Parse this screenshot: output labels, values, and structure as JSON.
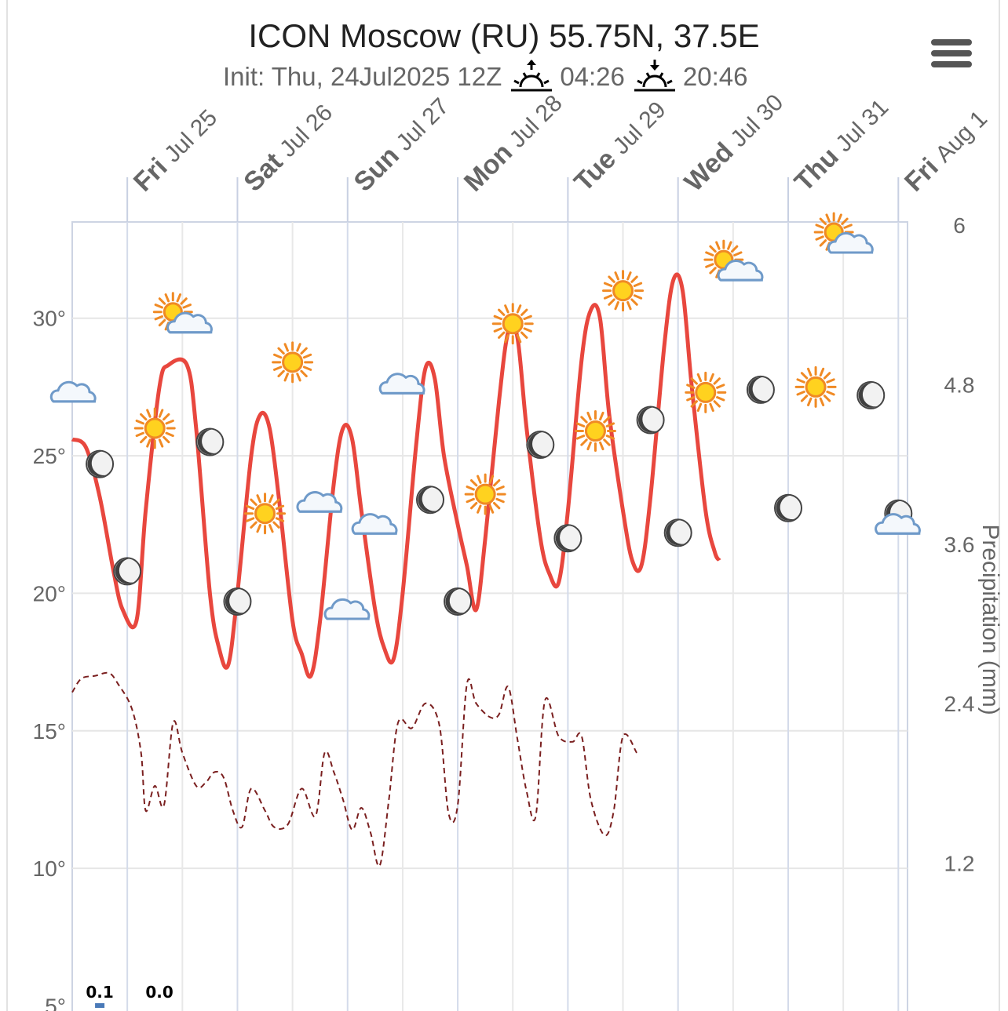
{
  "header": {
    "title": "ICON Moscow (RU) 55.75N, 37.5E",
    "init": "Init: Thu, 24Jul2025 12Z",
    "sunrise": "04:26",
    "sunset": "20:46",
    "menu_icon": "hamburger-menu-icon"
  },
  "chart_data": {
    "type": "line",
    "x_unit": "hours since Thu 24Jul2025 12Z",
    "x_range": [
      0,
      182
    ],
    "days": [
      {
        "dow": "Fri",
        "date": "Jul 25",
        "hour": 12
      },
      {
        "dow": "Sat",
        "date": "Jul 26",
        "hour": 36
      },
      {
        "dow": "Sun",
        "date": "Jul 27",
        "hour": 60
      },
      {
        "dow": "Mon",
        "date": "Jul 28",
        "hour": 84
      },
      {
        "dow": "Tue",
        "date": "Jul 29",
        "hour": 108
      },
      {
        "dow": "Wed",
        "date": "Jul 30",
        "hour": 132
      },
      {
        "dow": "Thu",
        "date": "Jul 31",
        "hour": 156
      },
      {
        "dow": "Fri",
        "date": "Aug 1",
        "hour": 180
      }
    ],
    "y_left": {
      "ticks": [
        "10°",
        "15°",
        "20°",
        "25°",
        "30°"
      ],
      "tick_values": [
        10,
        15,
        20,
        25,
        30
      ],
      "range": [
        4.5,
        33.5
      ],
      "partial_bottom_tick": "5°"
    },
    "y_right": {
      "title": "Precipitation (mm)",
      "ticks": [
        "1.2",
        "2.4",
        "3.6",
        "4.8",
        "6"
      ],
      "tick_values": [
        1.2,
        2.4,
        3.6,
        4.8,
        6
      ],
      "range": [
        0,
        6
      ]
    },
    "series": [
      {
        "kind": "temperature",
        "color": "#e8473e",
        "style": "solid",
        "points": [
          [
            0,
            25.6
          ],
          [
            3,
            25.3
          ],
          [
            6,
            23.5
          ],
          [
            9,
            20.8
          ],
          [
            11,
            19.4
          ],
          [
            14,
            19.0
          ],
          [
            16,
            23
          ],
          [
            19,
            27.5
          ],
          [
            21,
            28.3
          ],
          [
            25,
            28.3
          ],
          [
            27,
            26
          ],
          [
            30,
            20
          ],
          [
            32,
            18
          ],
          [
            34,
            17.4
          ],
          [
            36,
            20
          ],
          [
            39,
            25
          ],
          [
            41,
            26.5
          ],
          [
            43,
            26
          ],
          [
            45,
            23.5
          ],
          [
            48,
            19
          ],
          [
            50,
            17.8
          ],
          [
            52,
            17.0
          ],
          [
            54,
            19
          ],
          [
            57,
            24
          ],
          [
            59,
            26
          ],
          [
            61,
            25.6
          ],
          [
            63,
            23
          ],
          [
            66,
            19.4
          ],
          [
            68,
            18
          ],
          [
            70,
            17.6
          ],
          [
            72,
            20
          ],
          [
            75,
            25.5
          ],
          [
            77,
            28.2
          ],
          [
            79,
            27.8
          ],
          [
            81,
            25
          ],
          [
            84,
            22.5
          ],
          [
            86,
            21
          ],
          [
            88,
            19.4
          ],
          [
            90,
            22
          ],
          [
            93,
            27
          ],
          [
            95,
            29.5
          ],
          [
            97,
            29.3
          ],
          [
            99,
            26
          ],
          [
            102,
            22
          ],
          [
            104,
            20.7
          ],
          [
            106,
            20.4
          ],
          [
            108,
            23
          ],
          [
            111,
            28.5
          ],
          [
            113,
            30.3
          ],
          [
            115,
            30
          ],
          [
            117,
            26.5
          ],
          [
            120,
            23
          ],
          [
            122,
            21.2
          ],
          [
            124,
            21
          ],
          [
            126,
            23.5
          ],
          [
            129,
            29
          ],
          [
            131,
            31.4
          ],
          [
            133,
            31
          ],
          [
            135,
            27.5
          ],
          [
            138,
            23
          ],
          [
            140,
            21.5
          ],
          [
            141,
            21.2
          ]
        ]
      },
      {
        "kind": "dewpoint",
        "color": "#7a1f1f",
        "style": "dashed",
        "points": [
          [
            0,
            16.4
          ],
          [
            2,
            16.9
          ],
          [
            5,
            17
          ],
          [
            8,
            17.1
          ],
          [
            10,
            16.7
          ],
          [
            13,
            15.8
          ],
          [
            15,
            14.2
          ],
          [
            16,
            12.1
          ],
          [
            18,
            13
          ],
          [
            20,
            12.3
          ],
          [
            22,
            15.3
          ],
          [
            24,
            14.2
          ],
          [
            27,
            13
          ],
          [
            29,
            13.1
          ],
          [
            31,
            13.5
          ],
          [
            33,
            13.3
          ],
          [
            35,
            12.1
          ],
          [
            37,
            11.5
          ],
          [
            39,
            12.9
          ],
          [
            42,
            12.1
          ],
          [
            44,
            11.5
          ],
          [
            47,
            11.6
          ],
          [
            50,
            12.9
          ],
          [
            53,
            11.9
          ],
          [
            55,
            14.2
          ],
          [
            57,
            13.5
          ],
          [
            59,
            12.5
          ],
          [
            61,
            11.4
          ],
          [
            63,
            12.2
          ],
          [
            65,
            11.3
          ],
          [
            67,
            10.1
          ],
          [
            69,
            12.5
          ],
          [
            71,
            15.3
          ],
          [
            74,
            15.1
          ],
          [
            77,
            16
          ],
          [
            80,
            15.2
          ],
          [
            82,
            12
          ],
          [
            84,
            12.3
          ],
          [
            86,
            16.7
          ],
          [
            88,
            16
          ],
          [
            91,
            15.5
          ],
          [
            93,
            15.6
          ],
          [
            95,
            16.6
          ],
          [
            97,
            14.7
          ],
          [
            99,
            12.8
          ],
          [
            101,
            11.9
          ],
          [
            103,
            16.1
          ],
          [
            106,
            14.8
          ],
          [
            109,
            14.6
          ],
          [
            111,
            14.8
          ],
          [
            113,
            12.5
          ],
          [
            116,
            11.2
          ],
          [
            118,
            12.1
          ],
          [
            120,
            14.8
          ],
          [
            123,
            14.2
          ]
        ]
      },
      {
        "kind": "precipitation",
        "color": "#4a7ab8",
        "style": "bar",
        "labels": [
          {
            "hour": 6,
            "value": "0.1"
          },
          {
            "hour": 19,
            "value": "0.0"
          }
        ]
      }
    ],
    "weather_icons": [
      {
        "icon": "cloud",
        "hour": 0,
        "temp": 27.2
      },
      {
        "icon": "moon",
        "hour": 6,
        "temp": 24.7
      },
      {
        "icon": "moon",
        "hour": 12,
        "temp": 20.8
      },
      {
        "icon": "sun",
        "hour": 18,
        "temp": 26
      },
      {
        "icon": "sun-cloud",
        "hour": 24,
        "temp": 30
      },
      {
        "icon": "moon",
        "hour": 30,
        "temp": 25.5
      },
      {
        "icon": "moon",
        "hour": 36,
        "temp": 19.7
      },
      {
        "icon": "sun",
        "hour": 42,
        "temp": 22.9
      },
      {
        "icon": "sun",
        "hour": 48,
        "temp": 28.4
      },
      {
        "icon": "cloud",
        "hour": 54,
        "temp": 23.2
      },
      {
        "icon": "cloud",
        "hour": 60,
        "temp": 19.3
      },
      {
        "icon": "cloud",
        "hour": 66,
        "temp": 22.4
      },
      {
        "icon": "cloud",
        "hour": 72,
        "temp": 27.5
      },
      {
        "icon": "moon",
        "hour": 78,
        "temp": 23.4
      },
      {
        "icon": "moon",
        "hour": 84,
        "temp": 19.7
      },
      {
        "icon": "sun",
        "hour": 90,
        "temp": 23.6
      },
      {
        "icon": "sun",
        "hour": 96,
        "temp": 29.8
      },
      {
        "icon": "moon",
        "hour": 102,
        "temp": 25.4
      },
      {
        "icon": "moon",
        "hour": 108,
        "temp": 22.0
      },
      {
        "icon": "sun",
        "hour": 114,
        "temp": 25.9
      },
      {
        "icon": "sun",
        "hour": 120,
        "temp": 31
      },
      {
        "icon": "moon",
        "hour": 126,
        "temp": 26.3
      },
      {
        "icon": "moon",
        "hour": 132,
        "temp": 22.2
      },
      {
        "icon": "sun",
        "hour": 138,
        "temp": 27.3
      },
      {
        "icon": "sun-cloud",
        "hour": 144,
        "temp": 31.9
      },
      {
        "icon": "moon",
        "hour": 150,
        "temp": 27.4
      },
      {
        "icon": "moon",
        "hour": 156,
        "temp": 23.1
      },
      {
        "icon": "sun",
        "hour": 162,
        "temp": 27.5
      },
      {
        "icon": "sun-cloud",
        "hour": 168,
        "temp": 32.9
      },
      {
        "icon": "moon",
        "hour": 174,
        "temp": 27.2
      },
      {
        "icon": "moon",
        "hour": 180,
        "temp": 22.9
      },
      {
        "icon": "cloud",
        "hour": 180,
        "temp": 22.4
      }
    ],
    "grid": true,
    "legend": "none"
  }
}
